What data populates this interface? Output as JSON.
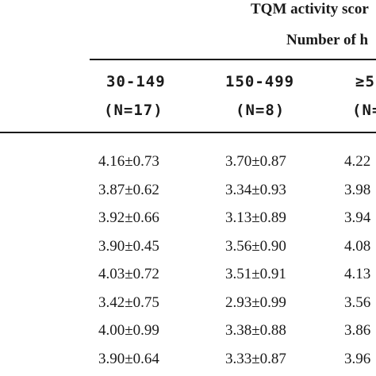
{
  "table": {
    "title": "TQM activity scor",
    "subtitle": "Number of h",
    "columns": [
      {
        "range": "30-149",
        "n": "(N=17)"
      },
      {
        "range": "150-499",
        "n": "(N=8)"
      },
      {
        "range": "≥5",
        "n": "(N="
      }
    ],
    "rows": [
      [
        "4.16±0.73",
        "3.70±0.87",
        "4.22"
      ],
      [
        "3.87±0.62",
        "3.34±0.93",
        "3.98"
      ],
      [
        "3.92±0.66",
        "3.13±0.89",
        "3.94"
      ],
      [
        "3.90±0.45",
        "3.56±0.90",
        "4.08"
      ],
      [
        "4.03±0.72",
        "3.51±0.91",
        "4.13"
      ],
      [
        "3.42±0.75",
        "2.93±0.99",
        "3.56"
      ],
      [
        "4.00±0.99",
        "3.38±0.88",
        "3.86"
      ],
      [
        "3.90±0.64",
        "3.33±0.87",
        "3.96"
      ]
    ]
  }
}
